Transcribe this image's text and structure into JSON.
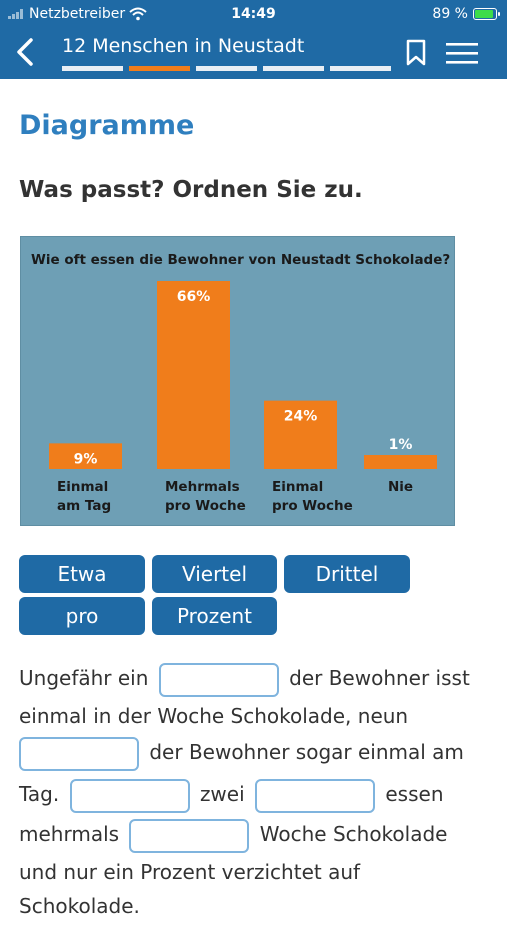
{
  "status_bar": {
    "carrier": "Netzbetreiber",
    "time": "14:49",
    "battery": "89 %"
  },
  "header": {
    "title": "12 Menschen in Neustadt",
    "progress_segments": 5,
    "active_segment": 2
  },
  "page": {
    "heading": "Diagramme",
    "task": "Was passt? Ordnen Sie zu."
  },
  "chart_data": {
    "type": "bar",
    "title": "Wie oft essen die Bewohner von Neustadt Schokolade?",
    "categories": [
      "Einmal am Tag",
      "Mehrmals pro Woche",
      "Einmal pro Woche",
      "Nie"
    ],
    "category_lines": [
      [
        "Einmal",
        "am Tag"
      ],
      [
        "Mehrmals",
        "pro Woche"
      ],
      [
        "Einmal",
        "pro Woche"
      ],
      [
        "Nie"
      ]
    ],
    "values": [
      9,
      66,
      24,
      1
    ],
    "value_labels": [
      "9%",
      "66%",
      "24%",
      "1%"
    ],
    "unit": "%",
    "bar_color": "#f07d1b",
    "background_color": "#6e9fb5",
    "grid": false
  },
  "word_tiles": [
    "Etwa",
    "Viertel",
    "Drittel",
    "pro",
    "Prozent"
  ],
  "cloze": {
    "l1_pre": "Ungefähr ein",
    "l1_post": "der Bewohner isst",
    "l2": "einmal in der Woche Schokolade, neun",
    "l3_post": "der Bewohner sogar einmal am",
    "l4_pre": "Tag.",
    "l4_mid": "zwei",
    "l4_post": "essen",
    "l5_pre": "mehrmals",
    "l5_post": "Woche Schokolade",
    "l6": "und nur ein Prozent verzichtet auf",
    "l7": "Schokolade."
  },
  "colors": {
    "header": "#1f6aa5",
    "accent": "#f07d1b",
    "heading": "#2f7fbf"
  }
}
